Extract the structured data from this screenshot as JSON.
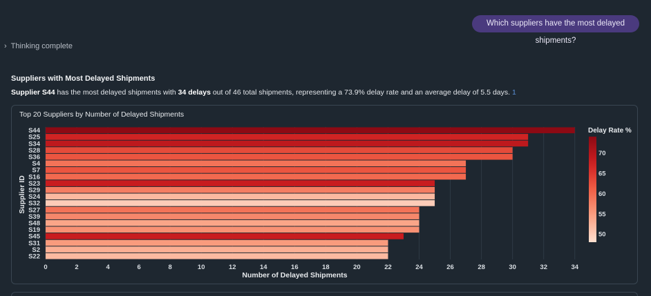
{
  "chat": {
    "user_message": "Which suppliers have the most delayed shipments?",
    "thinking_label": "Thinking complete"
  },
  "answer": {
    "title": "Suppliers with Most Delayed Shipments",
    "text_parts": {
      "supplier": "Supplier S44",
      "part1": " has the most delayed shipments with ",
      "delays": "34 delays",
      "part2": " out of 46 total shipments, representing a 73.9% delay rate and an average delay of 5.5 days.",
      "citation": "1"
    }
  },
  "chart_data": {
    "type": "bar",
    "orientation": "horizontal",
    "title": "Top 20 Suppliers by Number of Delayed Shipments",
    "xlabel": "Number of Delayed Shipments",
    "ylabel": "Supplier ID",
    "xlim": [
      0,
      34.5
    ],
    "x_ticks": [
      0,
      2,
      4,
      6,
      8,
      10,
      12,
      14,
      16,
      18,
      20,
      22,
      24,
      26,
      28,
      30,
      32,
      34
    ],
    "grid": true,
    "categories": [
      "S44",
      "S25",
      "S34",
      "S28",
      "S36",
      "S4",
      "S7",
      "S16",
      "S23",
      "S29",
      "S24",
      "S32",
      "S27",
      "S39",
      "S48",
      "S19",
      "S45",
      "S31",
      "S2",
      "S22"
    ],
    "values": [
      34,
      31,
      31,
      30,
      30,
      27,
      27,
      27,
      25,
      25,
      25,
      25,
      24,
      24,
      24,
      24,
      23,
      22,
      22,
      22
    ],
    "delay_rates": [
      73.9,
      67,
      69,
      63,
      62,
      59,
      62,
      60,
      68,
      58,
      52,
      50,
      59,
      57,
      54,
      56,
      68,
      55,
      53,
      52
    ],
    "colorbar": {
      "title": "Delay Rate %",
      "ticks": [
        70,
        65,
        60,
        55,
        50
      ],
      "range": [
        48,
        74
      ]
    }
  }
}
